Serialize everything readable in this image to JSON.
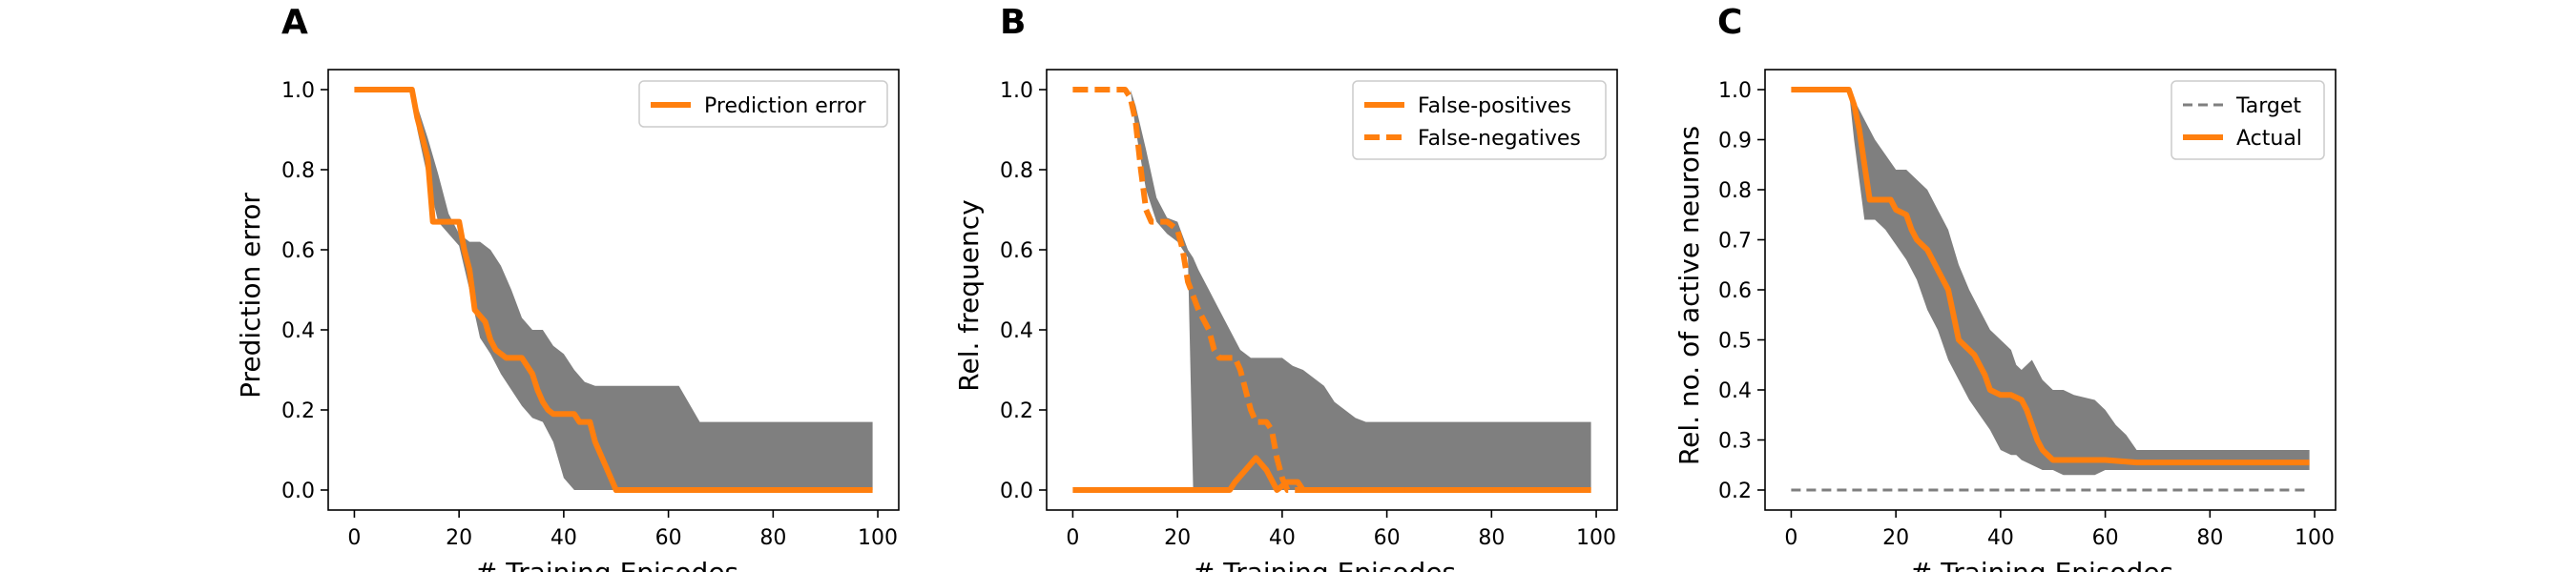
{
  "figure": {
    "panels": [
      {
        "letter": "A"
      },
      {
        "letter": "B"
      },
      {
        "letter": "C"
      }
    ]
  },
  "chart_data": [
    {
      "type": "line",
      "panel": "A",
      "xlabel": "# Training Episodes",
      "ylabel": "Prediction error",
      "xlim": [
        -5,
        104
      ],
      "ylim": [
        -0.05,
        1.05
      ],
      "xticks": [
        0,
        20,
        40,
        60,
        80,
        100
      ],
      "xtick_labels": [
        "0",
        "20",
        "40",
        "60",
        "80",
        "100"
      ],
      "yticks": [
        0.0,
        0.2,
        0.4,
        0.6,
        0.8,
        1.0
      ],
      "ytick_labels": [
        "0.0",
        "0.2",
        "0.4",
        "0.6",
        "0.8",
        "1.0"
      ],
      "grid": false,
      "legend_position": "top-right",
      "series": [
        {
          "name": "Prediction error",
          "color": "#ff7f0e",
          "dash": "solid",
          "x": [
            0,
            11,
            12,
            14,
            15,
            16,
            18,
            20,
            21,
            22,
            23,
            25,
            26,
            27,
            29,
            31,
            32,
            34,
            35,
            36,
            37,
            38,
            40,
            42,
            43,
            45,
            46,
            48,
            50,
            99
          ],
          "y": [
            1.0,
            1.0,
            0.93,
            0.83,
            0.67,
            0.67,
            0.67,
            0.67,
            0.6,
            0.55,
            0.45,
            0.42,
            0.375,
            0.35,
            0.33,
            0.33,
            0.33,
            0.29,
            0.25,
            0.22,
            0.2,
            0.19,
            0.19,
            0.19,
            0.17,
            0.17,
            0.12,
            0.06,
            0.0,
            0.0
          ]
        }
      ],
      "band": {
        "color": "#7f7f7f",
        "x": [
          0,
          11,
          12,
          14,
          16,
          18,
          20,
          22,
          24,
          26,
          28,
          30,
          32,
          34,
          36,
          38,
          40,
          42,
          44,
          46,
          48,
          50,
          56,
          62,
          66,
          99
        ],
        "upper": [
          1.0,
          1.0,
          0.96,
          0.88,
          0.79,
          0.69,
          0.64,
          0.62,
          0.62,
          0.6,
          0.56,
          0.5,
          0.43,
          0.4,
          0.4,
          0.36,
          0.34,
          0.3,
          0.27,
          0.26,
          0.26,
          0.26,
          0.26,
          0.26,
          0.17,
          0.17
        ],
        "lower": [
          1.0,
          1.0,
          0.9,
          0.78,
          0.67,
          0.64,
          0.61,
          0.5,
          0.38,
          0.34,
          0.29,
          0.25,
          0.21,
          0.18,
          0.17,
          0.12,
          0.03,
          0.0,
          0.0,
          0.0,
          0.0,
          0.0,
          0.0,
          0.0,
          0.0,
          0.0
        ]
      }
    },
    {
      "type": "line",
      "panel": "B",
      "xlabel": "# Training Episodes",
      "ylabel": "Rel. frequency",
      "xlim": [
        -5,
        104
      ],
      "ylim": [
        -0.05,
        1.05
      ],
      "xticks": [
        0,
        20,
        40,
        60,
        80,
        100
      ],
      "xtick_labels": [
        "0",
        "20",
        "40",
        "60",
        "80",
        "100"
      ],
      "yticks": [
        0.0,
        0.2,
        0.4,
        0.6,
        0.8,
        1.0
      ],
      "ytick_labels": [
        "0.0",
        "0.2",
        "0.4",
        "0.6",
        "0.8",
        "1.0"
      ],
      "grid": false,
      "legend_position": "top-right",
      "series": [
        {
          "name": "False-positives",
          "color": "#ff7f0e",
          "dash": "solid",
          "x": [
            0,
            30,
            31,
            33,
            35,
            37,
            39,
            41,
            43,
            44,
            99
          ],
          "y": [
            0.0,
            0.0,
            0.02,
            0.05,
            0.08,
            0.05,
            0.0,
            0.02,
            0.02,
            0.0,
            0.0
          ]
        },
        {
          "name": "False-negatives",
          "color": "#ff7f0e",
          "dash": "dashed",
          "x": [
            0,
            10,
            11,
            12,
            13,
            14,
            15,
            16,
            18,
            20,
            21,
            22,
            24,
            26,
            27,
            28,
            29,
            31,
            32,
            33,
            34,
            35,
            37,
            38,
            39,
            40,
            41,
            44,
            99
          ],
          "y": [
            1.0,
            1.0,
            0.98,
            0.92,
            0.8,
            0.7,
            0.67,
            0.67,
            0.67,
            0.65,
            0.6,
            0.52,
            0.45,
            0.4,
            0.35,
            0.33,
            0.33,
            0.33,
            0.3,
            0.25,
            0.2,
            0.17,
            0.17,
            0.15,
            0.08,
            0.03,
            0.0,
            0.0,
            0.0
          ]
        }
      ],
      "band": {
        "color": "#7f7f7f",
        "x": [
          0,
          11,
          12,
          14,
          16,
          18,
          20,
          22,
          23,
          24,
          26,
          28,
          30,
          32,
          34,
          36,
          38,
          40,
          42,
          44,
          46,
          48,
          50,
          52,
          54,
          56,
          99
        ],
        "upper": [
          1.0,
          1.0,
          0.96,
          0.85,
          0.73,
          0.68,
          0.67,
          0.6,
          0.58,
          0.55,
          0.5,
          0.45,
          0.4,
          0.35,
          0.33,
          0.33,
          0.33,
          0.33,
          0.31,
          0.3,
          0.28,
          0.26,
          0.22,
          0.2,
          0.18,
          0.17,
          0.17
        ],
        "lower": [
          1.0,
          1.0,
          0.9,
          0.75,
          0.67,
          0.64,
          0.62,
          0.58,
          0.0,
          0.0,
          0.0,
          0.0,
          0.0,
          0.0,
          0.0,
          0.0,
          0.0,
          0.0,
          0.0,
          0.0,
          0.0,
          0.0,
          0.0,
          0.0,
          0.0,
          0.0,
          0.0
        ]
      }
    },
    {
      "type": "line",
      "panel": "C",
      "xlabel": "# Training Episodes",
      "ylabel": "Rel. no. of active neurons",
      "xlim": [
        -5,
        104
      ],
      "ylim": [
        0.16,
        1.04
      ],
      "xticks": [
        0,
        20,
        40,
        60,
        80,
        100
      ],
      "xtick_labels": [
        "0",
        "20",
        "40",
        "60",
        "80",
        "100"
      ],
      "yticks": [
        0.2,
        0.3,
        0.4,
        0.5,
        0.6,
        0.7,
        0.8,
        0.9,
        1.0
      ],
      "ytick_labels": [
        "0.2",
        "0.3",
        "0.4",
        "0.5",
        "0.6",
        "0.7",
        "0.8",
        "0.9",
        "1.0"
      ],
      "grid": false,
      "legend_position": "top-right",
      "series": [
        {
          "name": "Target",
          "color": "#7f7f7f",
          "dash": "dashed",
          "x": [
            0,
            99
          ],
          "y": [
            0.2,
            0.2
          ]
        },
        {
          "name": "Actual",
          "color": "#ff7f0e",
          "dash": "solid",
          "x": [
            0,
            11,
            12,
            13,
            14,
            15,
            16,
            18,
            19,
            20,
            22,
            23,
            24,
            25,
            26,
            27,
            28,
            30,
            31,
            32,
            33,
            35,
            36,
            37,
            38,
            40,
            42,
            44,
            45,
            46,
            47,
            48,
            49,
            50,
            51,
            55,
            60,
            66,
            99
          ],
          "y": [
            1.0,
            1.0,
            0.97,
            0.92,
            0.85,
            0.78,
            0.78,
            0.78,
            0.78,
            0.76,
            0.75,
            0.72,
            0.7,
            0.69,
            0.68,
            0.66,
            0.64,
            0.6,
            0.55,
            0.5,
            0.49,
            0.47,
            0.45,
            0.43,
            0.4,
            0.39,
            0.39,
            0.38,
            0.36,
            0.33,
            0.3,
            0.28,
            0.27,
            0.26,
            0.26,
            0.26,
            0.26,
            0.255,
            0.255
          ]
        }
      ],
      "band": {
        "color": "#7f7f7f",
        "x": [
          0,
          11,
          12,
          14,
          16,
          18,
          20,
          22,
          24,
          26,
          28,
          30,
          32,
          34,
          36,
          38,
          40,
          42,
          43,
          44,
          46,
          48,
          50,
          52,
          54,
          58,
          60,
          62,
          64,
          66,
          99
        ],
        "upper": [
          1.0,
          1.0,
          0.98,
          0.94,
          0.9,
          0.87,
          0.84,
          0.84,
          0.82,
          0.8,
          0.76,
          0.72,
          0.65,
          0.6,
          0.56,
          0.52,
          0.5,
          0.48,
          0.45,
          0.44,
          0.46,
          0.42,
          0.4,
          0.4,
          0.39,
          0.38,
          0.36,
          0.33,
          0.31,
          0.28,
          0.28
        ],
        "lower": [
          1.0,
          1.0,
          0.9,
          0.74,
          0.74,
          0.72,
          0.69,
          0.66,
          0.62,
          0.56,
          0.52,
          0.46,
          0.42,
          0.38,
          0.35,
          0.32,
          0.28,
          0.27,
          0.27,
          0.26,
          0.25,
          0.24,
          0.24,
          0.23,
          0.23,
          0.23,
          0.24,
          0.24,
          0.24,
          0.24,
          0.24
        ]
      }
    }
  ]
}
